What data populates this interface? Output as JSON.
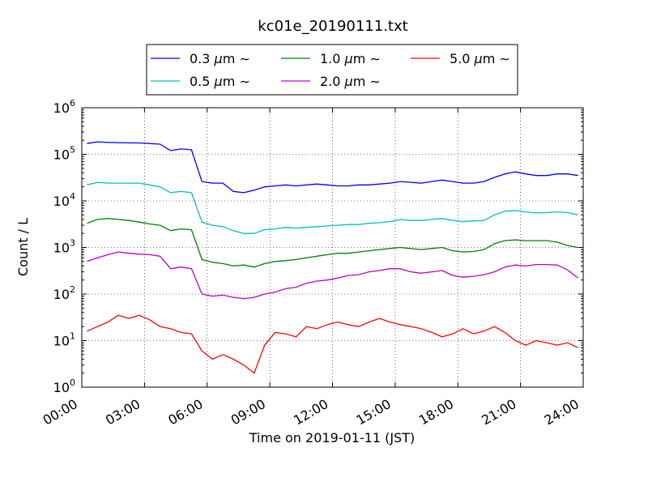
{
  "chart_data": {
    "type": "line",
    "title": "kc01e_20190111.txt",
    "xlabel": "Time on 2019-01-11 (JST)",
    "ylabel": "Count / L",
    "yscale": "log",
    "ylim_exponents": [
      0,
      6
    ],
    "xlim_hours": [
      0,
      24
    ],
    "grid": true,
    "legend_position": "top-center",
    "x_ticks": [
      "00:00",
      "03:00",
      "06:00",
      "09:00",
      "12:00",
      "15:00",
      "18:00",
      "21:00",
      "24:00"
    ],
    "y_tick_base": "10",
    "y_tick_exponents": [
      "0",
      "1",
      "2",
      "3",
      "4",
      "5",
      "6"
    ],
    "x_hours": [
      0.25,
      0.75,
      1.25,
      1.75,
      2.25,
      2.75,
      3.25,
      3.75,
      4.25,
      4.75,
      5.25,
      5.75,
      6.25,
      6.75,
      7.25,
      7.75,
      8.25,
      8.75,
      9.25,
      9.75,
      10.25,
      10.75,
      11.25,
      11.75,
      12.25,
      12.75,
      13.25,
      13.75,
      14.25,
      14.75,
      15.25,
      15.75,
      16.25,
      16.75,
      17.25,
      17.75,
      18.25,
      18.75,
      19.25,
      19.75,
      20.25,
      20.75,
      21.25,
      21.75,
      22.25,
      22.75,
      23.25,
      23.75
    ],
    "series": [
      {
        "name": "0.3 $\\mu$m $\\sim$",
        "label_main": "0.3 ",
        "label_unit": "μm",
        "label_tilde": "∼",
        "color": "#0000ff",
        "values": [
          170000,
          185000,
          180000,
          178000,
          176000,
          175000,
          170000,
          165000,
          120000,
          130000,
          125000,
          26000,
          24000,
          24000,
          16000,
          15000,
          17000,
          20000,
          21000,
          22000,
          21000,
          22000,
          23000,
          22000,
          21000,
          21000,
          22000,
          22000,
          23000,
          24000,
          26000,
          25000,
          24000,
          26000,
          28000,
          26000,
          24000,
          24000,
          26000,
          32000,
          38000,
          42000,
          38000,
          35000,
          35000,
          38000,
          38000,
          35000
        ]
      },
      {
        "name": "0.5 $\\mu$m $\\sim$",
        "label_main": "0.5 ",
        "label_unit": "μm",
        "label_tilde": "∼",
        "color": "#00bfbf",
        "values": [
          22000,
          25000,
          24000,
          24000,
          24000,
          24000,
          22000,
          20000,
          15000,
          16000,
          15000,
          3500,
          3000,
          2800,
          2300,
          2000,
          2000,
          2400,
          2500,
          2700,
          2600,
          2700,
          2800,
          2900,
          3000,
          3100,
          3100,
          3300,
          3400,
          3600,
          4000,
          3800,
          3800,
          4000,
          4200,
          3800,
          3600,
          3700,
          3800,
          5000,
          6000,
          6200,
          5800,
          5500,
          5600,
          5800,
          5600,
          5000
        ]
      },
      {
        "name": "1.0 $\\mu$m $\\sim$",
        "label_main": "1.0 ",
        "label_unit": "μm",
        "label_tilde": "∼",
        "color": "#008000",
        "values": [
          3300,
          4000,
          4200,
          4000,
          3800,
          3500,
          3200,
          3000,
          2300,
          2500,
          2400,
          550,
          480,
          450,
          400,
          420,
          380,
          450,
          500,
          520,
          550,
          600,
          650,
          700,
          750,
          750,
          800,
          850,
          900,
          950,
          1000,
          950,
          900,
          950,
          1000,
          850,
          800,
          820,
          900,
          1200,
          1400,
          1450,
          1400,
          1400,
          1400,
          1300,
          1100,
          1000
        ]
      },
      {
        "name": "2.0 $\\mu$m $\\sim$",
        "label_main": "2.0 ",
        "label_unit": "μm",
        "label_tilde": "∼",
        "color": "#bf00bf",
        "values": [
          500,
          600,
          700,
          800,
          750,
          720,
          700,
          650,
          350,
          380,
          350,
          100,
          90,
          95,
          85,
          80,
          85,
          100,
          110,
          130,
          140,
          170,
          190,
          200,
          220,
          250,
          260,
          300,
          320,
          350,
          350,
          300,
          280,
          300,
          320,
          250,
          230,
          240,
          260,
          300,
          380,
          420,
          400,
          430,
          430,
          420,
          330,
          220
        ]
      },
      {
        "name": "5.0 $\\mu$m $\\sim$",
        "label_main": "5.0 ",
        "label_unit": "μm",
        "label_tilde": "∼",
        "color": "#ff0000",
        "values": [
          16,
          20,
          25,
          35,
          30,
          35,
          28,
          20,
          18,
          15,
          14,
          6,
          4,
          5,
          4,
          3,
          2,
          8,
          15,
          14,
          12,
          20,
          18,
          22,
          25,
          22,
          20,
          25,
          30,
          25,
          22,
          20,
          18,
          15,
          12,
          14,
          18,
          14,
          16,
          20,
          15,
          10,
          8,
          10,
          9,
          8,
          9,
          7
        ]
      }
    ]
  }
}
